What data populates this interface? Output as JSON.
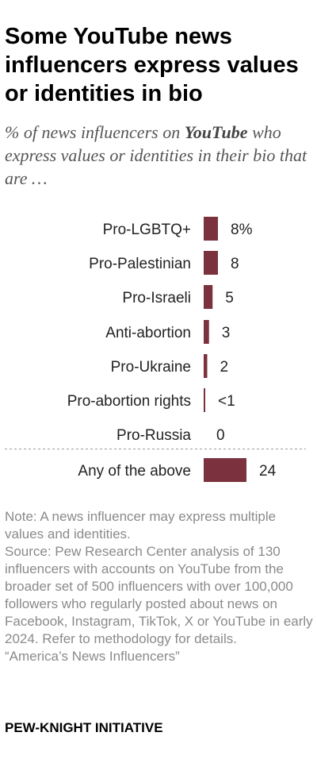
{
  "title": "Some YouTube news influencers express values or identities in bio",
  "subtitle": {
    "prefix": "% of news influencers on ",
    "emphasis": "YouTube",
    "suffix": " who express values or identities in their bio that are …"
  },
  "chart_data": {
    "type": "bar",
    "orientation": "horizontal",
    "categories": [
      "Pro-LGBTQ+",
      "Pro-Palestinian",
      "Pro-Israeli",
      "Anti-abortion",
      "Pro-Ukraine",
      "Pro-abortion rights",
      "Pro-Russia",
      "Any of the above"
    ],
    "values": [
      8,
      8,
      5,
      3,
      2,
      0.5,
      0,
      24
    ],
    "value_labels": [
      "8%",
      "8",
      "5",
      "3",
      "2",
      "<1",
      "0",
      "24"
    ],
    "xlim": [
      0,
      24
    ],
    "bar_color": "#7b323e",
    "separator_before": "Any of the above",
    "grid": false,
    "legend": "none"
  },
  "notes": {
    "note": "Note: A news influencer may express multiple values and identities.",
    "source": "Source: Pew Research Center analysis of 130 influencers with accounts on YouTube from the broader set of 500 influencers with over 100,000 followers who regularly posted about news on Facebook, Instagram, TikTok, X or YouTube in early 2024. Refer to methodology for details.",
    "report": "“America’s News Influencers”"
  },
  "brand": "PEW-KNIGHT INITIATIVE"
}
